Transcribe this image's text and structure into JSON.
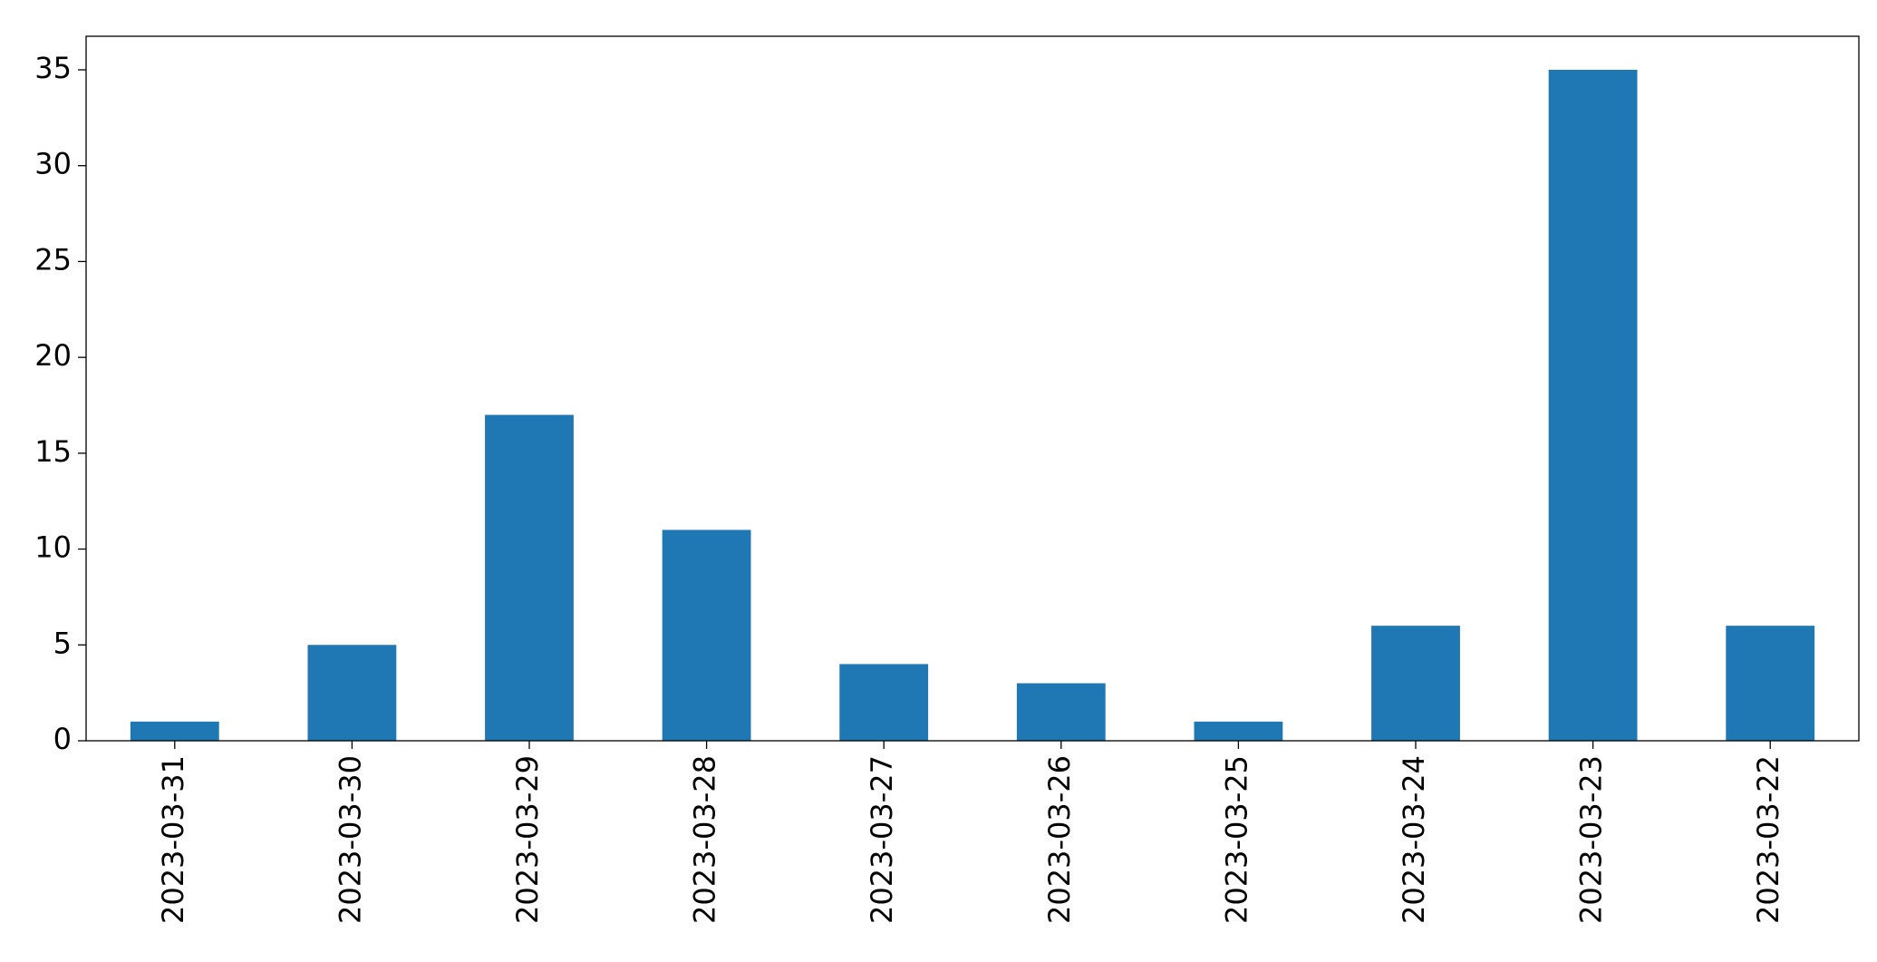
{
  "chart_data": {
    "type": "bar",
    "categories": [
      "2023-03-31",
      "2023-03-30",
      "2023-03-29",
      "2023-03-28",
      "2023-03-27",
      "2023-03-26",
      "2023-03-25",
      "2023-03-24",
      "2023-03-23",
      "2023-03-22"
    ],
    "values": [
      1,
      5,
      17,
      11,
      4,
      3,
      1,
      6,
      35,
      6
    ],
    "color": "#1f77b4",
    "ylim": [
      0,
      36.75
    ],
    "yticks": [
      0,
      5,
      10,
      15,
      20,
      25,
      30,
      35
    ],
    "grid": false
  }
}
